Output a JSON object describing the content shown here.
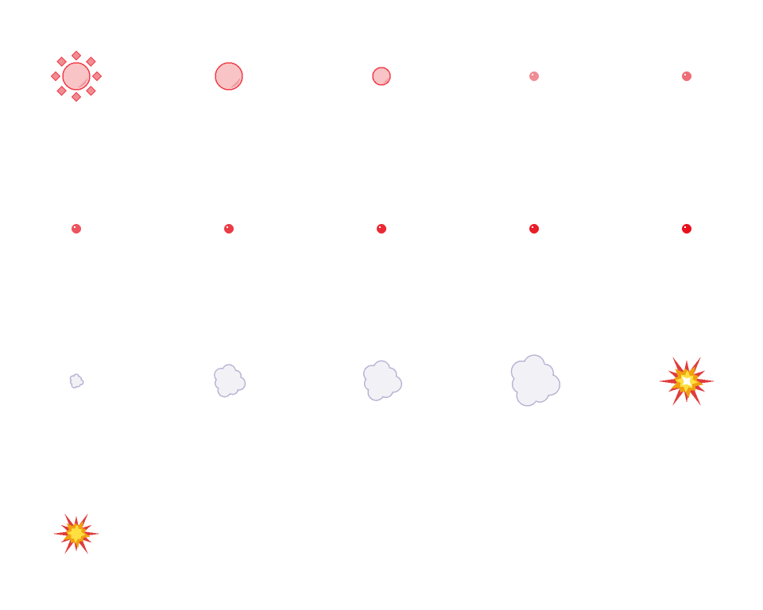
{
  "sprite_sheet": {
    "columns": 5,
    "rows": 4,
    "colors": {
      "bubble_fill": "#f8c4c6",
      "bubble_shade": "#f0989c",
      "bubble_outline": "#f03c48",
      "dot_light": "#f08c94",
      "dot_red": "#e8101c",
      "cloud_fill": "#f2f2f6",
      "cloud_outline": "#b8b4d4",
      "explosion_outer": "#e03c3c",
      "explosion_mid": "#f0a010",
      "explosion_core": "#ffe040",
      "explosion_center": "#ffffff"
    },
    "frames": [
      {
        "kind": "bubble-burst",
        "size": 17
      },
      {
        "kind": "bubble",
        "size": 17
      },
      {
        "kind": "bubble",
        "size": 11
      },
      {
        "kind": "dot",
        "size": 6,
        "redness": 0.0
      },
      {
        "kind": "dot",
        "size": 6,
        "redness": 0.25
      },
      {
        "kind": "dot",
        "size": 6,
        "redness": 0.45
      },
      {
        "kind": "dot",
        "size": 6,
        "redness": 0.65
      },
      {
        "kind": "dot",
        "size": 6,
        "redness": 0.8
      },
      {
        "kind": "dot",
        "size": 6,
        "redness": 0.9
      },
      {
        "kind": "dot",
        "size": 6,
        "redness": 1.0
      },
      {
        "kind": "cloud",
        "size": 8
      },
      {
        "kind": "cloud",
        "size": 18
      },
      {
        "kind": "cloud",
        "size": 22
      },
      {
        "kind": "cloud",
        "size": 28
      },
      {
        "kind": "explosion",
        "size": 36,
        "bright": true
      },
      {
        "kind": "explosion",
        "size": 30,
        "bright": false
      }
    ]
  }
}
